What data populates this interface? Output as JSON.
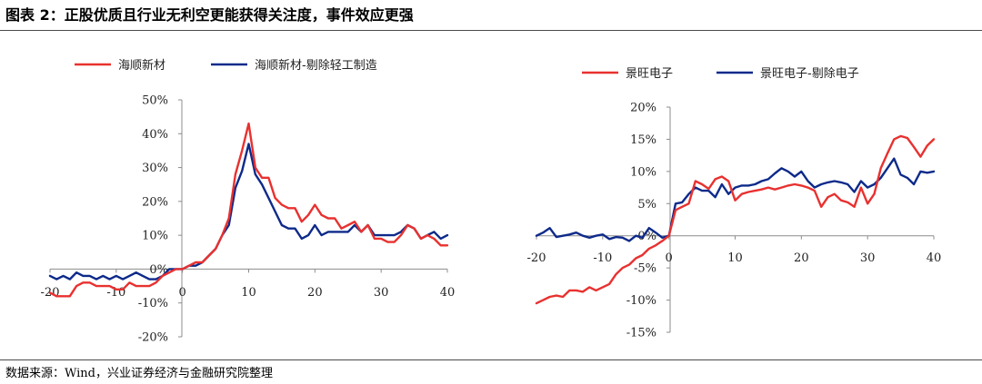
{
  "title": "图表 2：正股优质且行业无利空更能获得关注度，事件效应更强",
  "source": "数据来源：Wind，兴业证券经济与金融研究院整理",
  "colors": {
    "red": "#e8312f",
    "blue": "#0d2a8a"
  },
  "chart_data": [
    {
      "type": "line",
      "xlim": [
        -20,
        40
      ],
      "ylim": [
        -0.2,
        0.5
      ],
      "x_ticks": [
        "-20",
        "-10",
        "0",
        "10",
        "20",
        "30",
        "40"
      ],
      "y_ticks": [
        "-20%",
        "-10%",
        "0%",
        "10%",
        "20%",
        "30%",
        "40%",
        "50%"
      ],
      "legend_position": "top",
      "series": [
        {
          "name": "海顺新材",
          "color": "#e8312f",
          "x": [
            -20,
            -19,
            -18,
            -17,
            -16,
            -15,
            -14,
            -13,
            -12,
            -11,
            -10,
            -9,
            -8,
            -7,
            -6,
            -5,
            -4,
            -3,
            -2,
            -1,
            0,
            1,
            2,
            3,
            4,
            5,
            6,
            7,
            8,
            9,
            10,
            11,
            12,
            13,
            14,
            15,
            16,
            17,
            18,
            19,
            20,
            21,
            22,
            23,
            24,
            25,
            26,
            27,
            28,
            29,
            30,
            31,
            32,
            33,
            34,
            35,
            36,
            37,
            38,
            39,
            40
          ],
          "y": [
            -0.07,
            -0.08,
            -0.08,
            -0.08,
            -0.05,
            -0.04,
            -0.04,
            -0.05,
            -0.05,
            -0.05,
            -0.06,
            -0.06,
            -0.04,
            -0.05,
            -0.05,
            -0.05,
            -0.04,
            -0.02,
            -0.01,
            0.0,
            0.0,
            0.01,
            0.02,
            0.02,
            0.04,
            0.06,
            0.1,
            0.15,
            0.28,
            0.35,
            0.43,
            0.3,
            0.27,
            0.27,
            0.21,
            0.19,
            0.18,
            0.18,
            0.14,
            0.16,
            0.19,
            0.16,
            0.15,
            0.15,
            0.12,
            0.13,
            0.14,
            0.11,
            0.13,
            0.09,
            0.09,
            0.08,
            0.08,
            0.1,
            0.13,
            0.12,
            0.09,
            0.1,
            0.09,
            0.07,
            0.07
          ]
        },
        {
          "name": "海顺新材-剔除轻工制造",
          "color": "#0d2a8a",
          "x": [
            -20,
            -19,
            -18,
            -17,
            -16,
            -15,
            -14,
            -13,
            -12,
            -11,
            -10,
            -9,
            -8,
            -7,
            -6,
            -5,
            -4,
            -3,
            -2,
            -1,
            0,
            1,
            2,
            3,
            4,
            5,
            6,
            7,
            8,
            9,
            10,
            11,
            12,
            13,
            14,
            15,
            16,
            17,
            18,
            19,
            20,
            21,
            22,
            23,
            24,
            25,
            26,
            27,
            28,
            29,
            30,
            31,
            32,
            33,
            34,
            35,
            36,
            37,
            38,
            39,
            40
          ],
          "y": [
            -0.02,
            -0.03,
            -0.02,
            -0.03,
            -0.01,
            -0.02,
            -0.02,
            -0.03,
            -0.02,
            -0.03,
            -0.02,
            -0.03,
            -0.02,
            -0.01,
            -0.02,
            -0.03,
            -0.03,
            -0.02,
            0.0,
            0.0,
            0.0,
            0.01,
            0.01,
            0.02,
            0.04,
            0.06,
            0.1,
            0.13,
            0.24,
            0.29,
            0.37,
            0.28,
            0.25,
            0.21,
            0.17,
            0.13,
            0.12,
            0.12,
            0.09,
            0.1,
            0.13,
            0.1,
            0.11,
            0.11,
            0.11,
            0.11,
            0.13,
            0.11,
            0.13,
            0.1,
            0.1,
            0.1,
            0.1,
            0.11,
            0.13,
            0.12,
            0.09,
            0.1,
            0.11,
            0.09,
            0.1
          ]
        }
      ]
    },
    {
      "type": "line",
      "xlim": [
        -20,
        40
      ],
      "ylim": [
        -0.15,
        0.2
      ],
      "x_ticks": [
        "-20",
        "-10",
        "0",
        "10",
        "20",
        "30",
        "40"
      ],
      "y_ticks": [
        "-15%",
        "-10%",
        "-5%",
        "0%",
        "5%",
        "10%",
        "15%",
        "20%"
      ],
      "legend_position": "top",
      "series": [
        {
          "name": "景旺电子",
          "color": "#e8312f",
          "x": [
            -20,
            -19,
            -18,
            -17,
            -16,
            -15,
            -14,
            -13,
            -12,
            -11,
            -10,
            -9,
            -8,
            -7,
            -6,
            -5,
            -4,
            -3,
            -2,
            -1,
            0,
            1,
            2,
            3,
            4,
            5,
            6,
            7,
            8,
            9,
            10,
            11,
            12,
            13,
            14,
            15,
            16,
            17,
            18,
            19,
            20,
            21,
            22,
            23,
            24,
            25,
            26,
            27,
            28,
            29,
            30,
            31,
            32,
            33,
            34,
            35,
            36,
            37,
            38,
            39,
            40
          ],
          "y": [
            -0.105,
            -0.1,
            -0.095,
            -0.093,
            -0.095,
            -0.085,
            -0.085,
            -0.087,
            -0.08,
            -0.085,
            -0.08,
            -0.075,
            -0.06,
            -0.05,
            -0.045,
            -0.035,
            -0.03,
            -0.02,
            -0.015,
            -0.008,
            0.0,
            0.04,
            0.045,
            0.05,
            0.085,
            0.08,
            0.073,
            0.088,
            0.092,
            0.085,
            0.055,
            0.065,
            0.068,
            0.07,
            0.072,
            0.075,
            0.072,
            0.075,
            0.078,
            0.08,
            0.078,
            0.075,
            0.07,
            0.045,
            0.06,
            0.065,
            0.055,
            0.052,
            0.045,
            0.075,
            0.05,
            0.065,
            0.105,
            0.128,
            0.15,
            0.155,
            0.152,
            0.138,
            0.123,
            0.14,
            0.15
          ]
        },
        {
          "name": "景旺电子-剔除电子",
          "color": "#0d2a8a",
          "x": [
            -20,
            -19,
            -18,
            -17,
            -16,
            -15,
            -14,
            -13,
            -12,
            -11,
            -10,
            -9,
            -8,
            -7,
            -6,
            -5,
            -4,
            -3,
            -2,
            -1,
            0,
            1,
            2,
            3,
            4,
            5,
            6,
            7,
            8,
            9,
            10,
            11,
            12,
            13,
            14,
            15,
            16,
            17,
            18,
            19,
            20,
            21,
            22,
            23,
            24,
            25,
            26,
            27,
            28,
            29,
            30,
            31,
            32,
            33,
            34,
            35,
            36,
            37,
            38,
            39,
            40
          ],
          "y": [
            0.0,
            0.005,
            0.012,
            -0.002,
            0.0,
            0.002,
            0.005,
            0.0,
            -0.003,
            0.0,
            0.002,
            -0.005,
            -0.002,
            -0.003,
            -0.008,
            0.0,
            -0.003,
            0.012,
            0.005,
            -0.003,
            0.0,
            0.05,
            0.052,
            0.065,
            0.075,
            0.07,
            0.07,
            0.06,
            0.08,
            0.065,
            0.075,
            0.078,
            0.078,
            0.08,
            0.085,
            0.088,
            0.097,
            0.105,
            0.1,
            0.092,
            0.1,
            0.085,
            0.075,
            0.08,
            0.083,
            0.085,
            0.083,
            0.08,
            0.068,
            0.085,
            0.075,
            0.08,
            0.09,
            0.105,
            0.12,
            0.095,
            0.09,
            0.08,
            0.1,
            0.098,
            0.1
          ]
        }
      ]
    }
  ]
}
